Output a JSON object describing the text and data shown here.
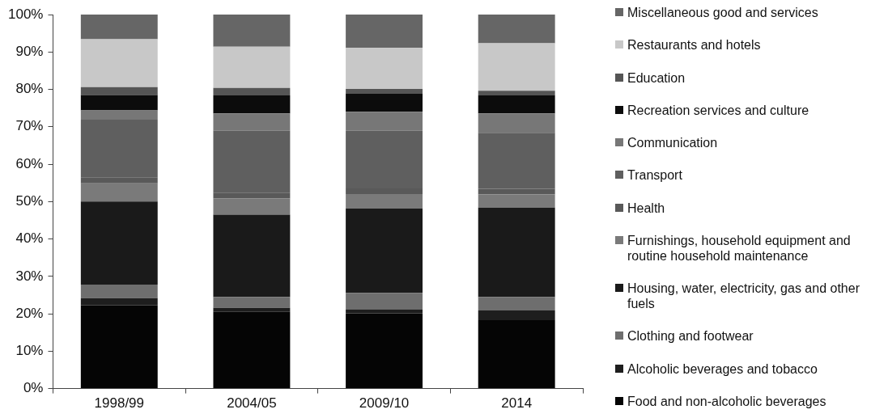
{
  "chart_data": {
    "type": "bar",
    "stacked": true,
    "legend": "right",
    "categories": [
      "1998/99",
      "2004/05",
      "2009/10",
      "2014"
    ],
    "ylim": [
      0,
      100
    ],
    "yticks": [
      {
        "value": 0,
        "label": "0%"
      },
      {
        "value": 10,
        "label": "10%"
      },
      {
        "value": 20,
        "label": "20%"
      },
      {
        "value": 30,
        "label": "30%"
      },
      {
        "value": 40,
        "label": "40%"
      },
      {
        "value": 50,
        "label": "50%"
      },
      {
        "value": 60,
        "label": "60%"
      },
      {
        "value": 70,
        "label": "70%"
      },
      {
        "value": 80,
        "label": "80%"
      },
      {
        "value": 90,
        "label": "90%"
      },
      {
        "value": 100,
        "label": "100%"
      }
    ],
    "series": [
      {
        "name": "Food and non-alcoholic beverages",
        "color": "#050505",
        "values": [
          22.3,
          20.5,
          20.1,
          18.3
        ]
      },
      {
        "name": "Alcoholic beverages and tobacco",
        "color": "#1e1e1e",
        "values": [
          1.9,
          1.1,
          1.1,
          2.6
        ]
      },
      {
        "name": "Clothing and footwear",
        "color": "#6e6e6e",
        "values": [
          3.6,
          2.9,
          4.4,
          3.6
        ]
      },
      {
        "name": "Housing, water, electricity, gas and other fuels",
        "color": "#1a1a1a",
        "values": [
          22.2,
          22.0,
          22.5,
          23.9
        ]
      },
      {
        "name": "Furnishings, household equipment and routine household maintenance",
        "color": "#7a7a7a",
        "values": [
          4.9,
          4.4,
          3.9,
          3.5
        ]
      },
      {
        "name": "Health",
        "color": "#595959",
        "values": [
          1.6,
          1.5,
          1.5,
          1.5
        ]
      },
      {
        "name": "Transport",
        "color": "#5f5f5f",
        "values": [
          15.4,
          16.5,
          15.4,
          15.0
        ]
      },
      {
        "name": "Communication",
        "color": "#777777",
        "values": [
          2.5,
          4.7,
          5.1,
          5.2
        ]
      },
      {
        "name": "Recreation services and culture",
        "color": "#0c0c0c",
        "values": [
          4.1,
          4.8,
          4.8,
          4.8
        ]
      },
      {
        "name": "Education",
        "color": "#555555",
        "values": [
          2.1,
          2.0,
          1.3,
          1.2
        ]
      },
      {
        "name": "Restaurants and hotels",
        "color": "#c8c8c8",
        "values": [
          12.8,
          11.0,
          11.0,
          12.7
        ]
      },
      {
        "name": "Miscellaneous good and services",
        "color": "#666666",
        "values": [
          6.6,
          8.6,
          8.9,
          7.7
        ]
      }
    ]
  }
}
